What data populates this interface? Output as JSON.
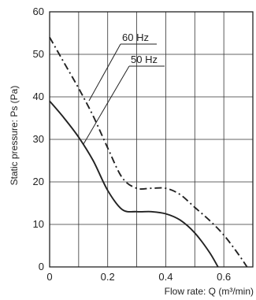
{
  "chart_data": {
    "type": "line",
    "title": "",
    "xlabel": "Flow rate: Q (m³/min)",
    "ylabel": "Static pressure: Ps (Pa)",
    "xlim": [
      0,
      0.7
    ],
    "ylim": [
      0,
      60
    ],
    "x_ticks": [
      0,
      0.2,
      0.4,
      0.6
    ],
    "x_tick_labels": [
      "0",
      "0.2",
      "0.4",
      "0.6"
    ],
    "y_ticks": [
      0,
      10,
      20,
      30,
      40,
      50,
      60
    ],
    "y_tick_labels": [
      "0",
      "10",
      "20",
      "30",
      "40",
      "50",
      "60"
    ],
    "grid": true,
    "series": [
      {
        "name": "60 Hz",
        "style": "dash-dot",
        "color": "#222222",
        "x": [
          0,
          0.05,
          0.1,
          0.15,
          0.2,
          0.25,
          0.3,
          0.35,
          0.4,
          0.45,
          0.5,
          0.55,
          0.6,
          0.65,
          0.68
        ],
        "y": [
          54,
          48,
          42,
          35.5,
          28,
          21,
          18.5,
          18.5,
          18.5,
          17,
          14,
          11,
          7.5,
          3,
          0
        ]
      },
      {
        "name": "50 Hz",
        "style": "solid",
        "color": "#222222",
        "x": [
          0,
          0.05,
          0.1,
          0.15,
          0.2,
          0.25,
          0.3,
          0.35,
          0.4,
          0.45,
          0.5,
          0.55,
          0.58
        ],
        "y": [
          39,
          35,
          30.5,
          25,
          18,
          13.5,
          13,
          13,
          12.5,
          11,
          8,
          3.5,
          0
        ]
      }
    ],
    "annotations": [
      {
        "text": "60 Hz",
        "target_series": "60 Hz"
      },
      {
        "text": "50 Hz",
        "target_series": "50 Hz"
      }
    ]
  }
}
